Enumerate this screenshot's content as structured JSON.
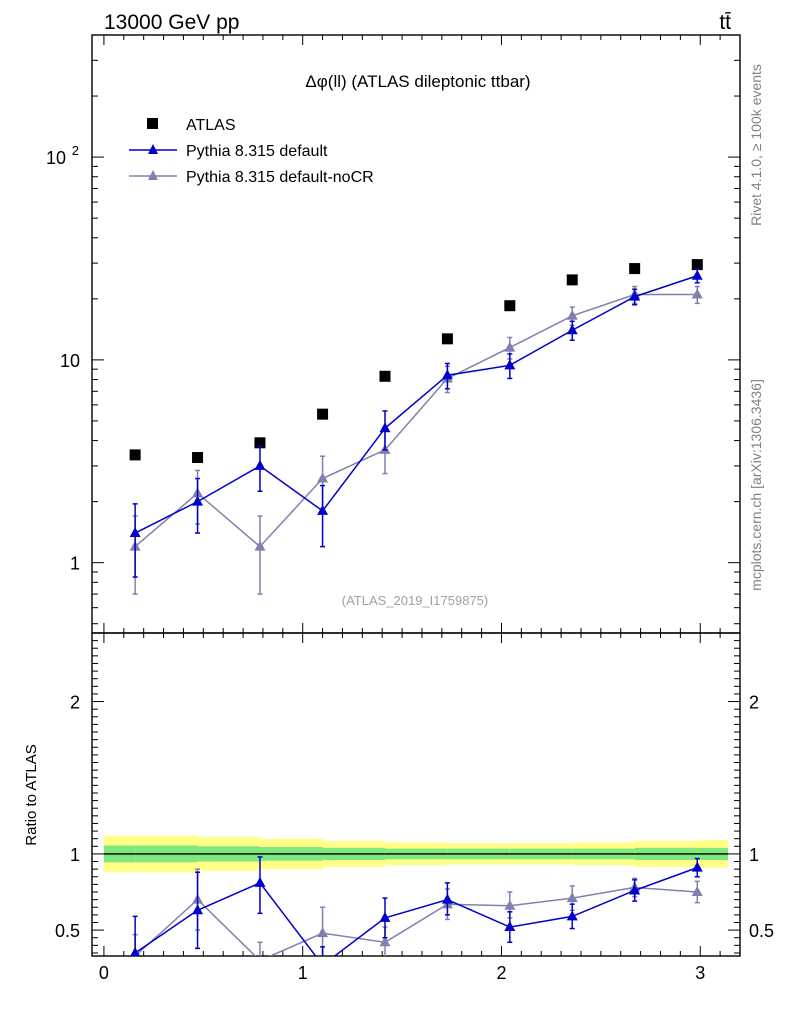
{
  "header": {
    "energy": "13000 GeV pp",
    "process": "tt̄"
  },
  "side_labels": {
    "rivet": "Rivet 4.1.0, ≥ 100k events",
    "source": "mcplots.cern.ch [arXiv:1306.3436]"
  },
  "colors": {
    "atlas": "#000000",
    "pythia_default": "#0000cc",
    "pythia_nocr": "#8080b0",
    "band_inner": "#7ee87e",
    "band_outer": "#ffff88",
    "analysis_label": "#a0a0a0"
  },
  "chart_data": [
    {
      "type": "scatter",
      "panel": "main",
      "title": "Δφ(ll) (ATLAS dileptonic ttbar)",
      "analysis_id": "(ATLAS_2019_I1759875)",
      "yscale": "log",
      "xlim": [
        -0.06,
        3.2
      ],
      "ylim": [
        0.45,
        400
      ],
      "ytick_labels": [
        {
          "value": 1,
          "label": "1"
        },
        {
          "value": 10,
          "label": "10"
        },
        {
          "value": 100,
          "label": "10",
          "sup": "2"
        }
      ],
      "legend_position": "top-left",
      "series": [
        {
          "name": "ATLAS",
          "marker": "square",
          "x": [
            0.157,
            0.471,
            0.785,
            1.1,
            1.414,
            1.728,
            2.042,
            2.356,
            2.67,
            2.985
          ],
          "y": [
            3.4,
            3.3,
            3.9,
            5.4,
            8.3,
            12.7,
            18.5,
            24.8,
            28.2,
            29.5
          ]
        },
        {
          "name": "Pythia 8.315 default",
          "marker": "triangle",
          "x": [
            0.157,
            0.471,
            0.785,
            1.1,
            1.414,
            1.728,
            2.042,
            2.356,
            2.67,
            2.985
          ],
          "y": [
            1.4,
            2.0,
            3.0,
            1.8,
            4.6,
            8.4,
            9.4,
            14.0,
            20.5,
            26.0
          ],
          "err_low": [
            0.55,
            0.6,
            0.75,
            0.6,
            1.0,
            1.2,
            1.3,
            1.5,
            1.8,
            2.0
          ],
          "err_high": [
            0.55,
            0.6,
            0.75,
            0.6,
            1.0,
            1.2,
            1.3,
            1.5,
            1.8,
            2.0
          ]
        },
        {
          "name": "Pythia 8.315 default-noCR",
          "marker": "triangle",
          "x": [
            0.157,
            0.471,
            0.785,
            1.1,
            1.414,
            1.728,
            2.042,
            2.356,
            2.67,
            2.985
          ],
          "y": [
            1.2,
            2.2,
            1.2,
            2.6,
            3.6,
            8.1,
            11.5,
            16.5,
            21.0,
            21.0
          ],
          "err_low": [
            0.5,
            0.65,
            0.5,
            0.75,
            0.85,
            1.2,
            1.4,
            1.7,
            2.0,
            2.0
          ],
          "err_high": [
            0.5,
            0.65,
            0.5,
            0.75,
            0.85,
            1.2,
            1.4,
            1.7,
            2.0,
            2.0
          ]
        }
      ]
    },
    {
      "type": "scatter",
      "panel": "ratio",
      "ylabel": "Ratio to ATLAS",
      "xlim": [
        -0.06,
        3.2
      ],
      "ylim": [
        0.33,
        2.45
      ],
      "x_ticks": [
        0,
        1,
        2,
        3
      ],
      "x_tick_labels": [
        "0",
        "1",
        "2",
        "3"
      ],
      "y_ticks": [
        0.5,
        1,
        2
      ],
      "y_tick_labels": [
        "0.5",
        "1",
        "2"
      ],
      "reference_line": 1,
      "band_x_edges": [
        0.0,
        0.157,
        0.471,
        0.785,
        1.1,
        1.414,
        1.728,
        2.042,
        2.356,
        2.67,
        2.985,
        3.14
      ],
      "band_inner_halfwidth": [
        0.055,
        0.055,
        0.05,
        0.045,
        0.04,
        0.035,
        0.035,
        0.035,
        0.035,
        0.04,
        0.04
      ],
      "band_outer_halfwidth": [
        0.12,
        0.12,
        0.11,
        0.1,
        0.085,
        0.075,
        0.07,
        0.07,
        0.075,
        0.085,
        0.09
      ],
      "series": [
        {
          "name": "Pythia 8.315 default",
          "x": [
            0.157,
            0.471,
            0.785,
            1.1,
            1.414,
            1.728,
            2.042,
            2.356,
            2.67,
            2.985
          ],
          "y": [
            0.35,
            0.63,
            0.81,
            0.27,
            0.58,
            0.7,
            0.52,
            0.59,
            0.76,
            0.91
          ],
          "err_low": [
            0.24,
            0.25,
            0.2,
            0.12,
            0.13,
            0.1,
            0.1,
            0.08,
            0.07,
            0.06
          ],
          "err_high": [
            0.24,
            0.25,
            0.17,
            0.12,
            0.13,
            0.11,
            0.1,
            0.08,
            0.07,
            0.06
          ]
        },
        {
          "name": "Pythia 8.315 default-noCR",
          "x": [
            0.157,
            0.471,
            0.785,
            1.1,
            1.414,
            1.728,
            2.042,
            2.356,
            2.67,
            2.985
          ],
          "y": [
            0.33,
            0.7,
            0.3,
            0.48,
            0.42,
            0.67,
            0.66,
            0.71,
            0.78,
            0.75
          ],
          "err_low": [
            0.14,
            0.2,
            0.12,
            0.16,
            0.1,
            0.1,
            0.08,
            0.08,
            0.06,
            0.07
          ],
          "err_high": [
            0.14,
            0.2,
            0.12,
            0.17,
            0.1,
            0.1,
            0.09,
            0.08,
            0.06,
            0.07
          ]
        }
      ]
    }
  ]
}
